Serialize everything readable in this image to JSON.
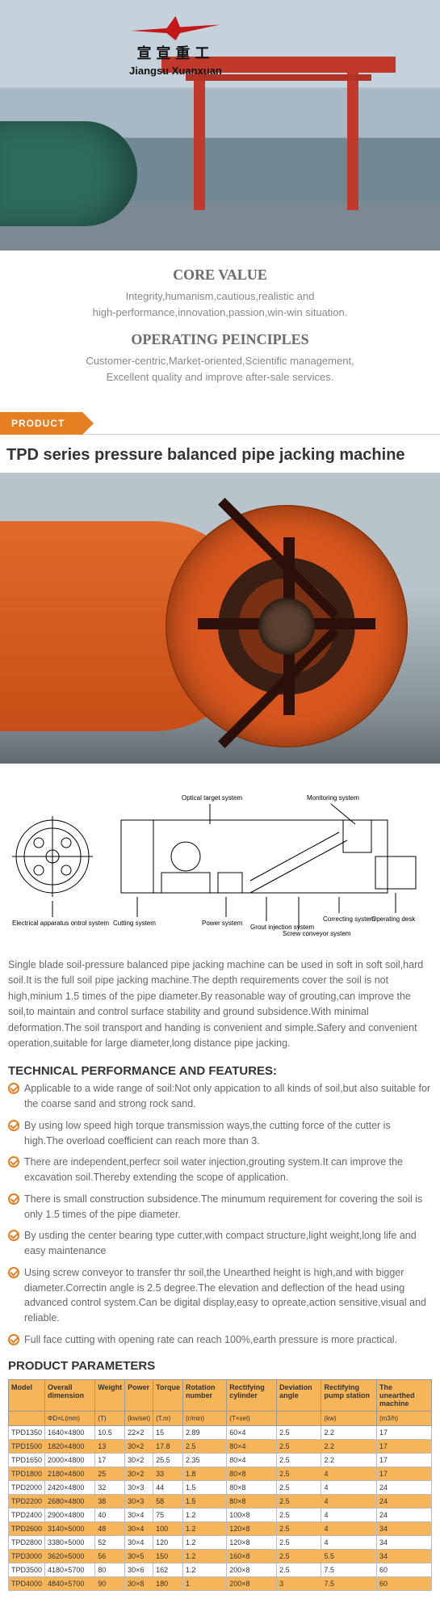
{
  "logo": {
    "cn": "宣宣重工",
    "en": "Jiangsu Xuanxuan"
  },
  "values": {
    "core_h": "CORE VALUE",
    "core_t1": "Integrity,humanism,cautious,realistic and",
    "core_t2": "high-performance,innovation,passion,win-win situation.",
    "op_h": "OPERATING PEINCIPLES",
    "op_t1": "Customer-centric,Market-oriented,Scientific management,",
    "op_t2": "Excellent quality and improve after-sale services."
  },
  "product_tab": "PRODUCT",
  "title": "TPD series pressure balanced pipe jacking machine",
  "diagram_labels": {
    "optical": "Optical target system",
    "monitor": "Monitoring system",
    "elec": "Electrical apparatus ontrol system",
    "cutting": "Cutting system",
    "power": "Power system",
    "grout": "Grout injection system",
    "screw": "Screw conveyor system",
    "correct": "Correcting system",
    "desk": "Operating desk"
  },
  "description": "Single blade soil-pressure balanced pipe jacking machine can be used in soft in soft soil,hard soil.It is the full soil pipe jacking machine.The depth requirements cover the soil is not high,minium 1.5 times of the pipe diameter.By reasonable way of grouting,can improve the soil,to maintain and control surface stability and ground subsidence.With minimal deformation.The soil transport and handing is convenient and simple.Safery and convenient operation,suitable for large diameter,long distance pipe jacking.",
  "tech_h": "TECHNICAL PERFORMANCE AND FEATURES:",
  "features": [
    "Applicable to a wide range of soil:Not only appication to all kinds of soil,but also suitable for the coarse sand and strong rock sand.",
    "By using low speed high torque transmission ways,the cutting force of the cutter is high.The overload coefficient can reach more than 3.",
    "There are independent,perfecr soil water injection,grouting system.It can improve the excavation soil.Thereby extending the scope of application.",
    "There is small construction subsidence.The minumum requirement for covering the soil is only 1.5 times of the pipe diameter.",
    "By usding the center bearing type cutter,with compact structure,light weight,long life and easy maintenance",
    "Using screw conveyor to transfer thr soil,the Unearthed height is high,and with bigger diameter.Correctin angle is 2.5 degree.The elevation and deflection of the head using advanced control system.Can be digital display,easy to opreate,action sensitive,visual and reliable.",
    "Full face cutting with opening rate can reach 100%,earth pressure is more practical."
  ],
  "params_h": "PRODUCT PARAMETERS",
  "params": {
    "headers": [
      "Model",
      "Overall dimension",
      "Weight",
      "Power",
      "Torque",
      "Rotation number",
      "Rectifying cylinder",
      "Deviation angle",
      "Rectifying pump station",
      "The unearthed machine"
    ],
    "sub": [
      "",
      "ΦD×L(mm)",
      "(T)",
      "(kw/set)",
      "(T.m)",
      "(r/min)",
      "(T×set)",
      "",
      "(kw)",
      "(m3/h)"
    ],
    "rows": [
      {
        "hl": false,
        "c": [
          "TPD1350",
          "1640×4800",
          "10.5",
          "22×2",
          "15",
          "2.89",
          "60×4",
          "2.5",
          "2.2",
          "17"
        ]
      },
      {
        "hl": true,
        "c": [
          "TPD1500",
          "1820×4800",
          "13",
          "30×2",
          "17.8",
          "2.5",
          "80×4",
          "2.5",
          "2.2",
          "17"
        ]
      },
      {
        "hl": false,
        "c": [
          "TPD1650",
          "2000×4800",
          "17",
          "30×2",
          "25.5",
          "2.35",
          "80×4",
          "2.5",
          "2.2",
          "17"
        ]
      },
      {
        "hl": true,
        "c": [
          "TPD1800",
          "2180×4800",
          "25",
          "30×2",
          "33",
          "1.8",
          "80×8",
          "2.5",
          "4",
          "17"
        ]
      },
      {
        "hl": false,
        "c": [
          "TPD2000",
          "2420×4800",
          "32",
          "30×3",
          "44",
          "1.5",
          "80×8",
          "2.5",
          "4",
          "24"
        ]
      },
      {
        "hl": true,
        "c": [
          "TPD2200",
          "2680×4800",
          "38",
          "30×3",
          "58",
          "1.5",
          "80×8",
          "2.5",
          "4",
          "24"
        ]
      },
      {
        "hl": false,
        "c": [
          "TPD2400",
          "2900×4800",
          "40",
          "30×4",
          "75",
          "1.2",
          "100×8",
          "2.5",
          "4",
          "24"
        ]
      },
      {
        "hl": true,
        "c": [
          "TPD2600",
          "3140×5000",
          "48",
          "30×4",
          "100",
          "1.2",
          "120×8",
          "2.5",
          "4",
          "34"
        ]
      },
      {
        "hl": false,
        "c": [
          "TPD2800",
          "3380×5000",
          "52",
          "30×4",
          "120",
          "1.2",
          "120×8",
          "2.5",
          "4",
          "34"
        ]
      },
      {
        "hl": true,
        "c": [
          "TPD3000",
          "3620×5000",
          "56",
          "30×5",
          "150",
          "1.2",
          "160×8",
          "2.5",
          "5.5",
          "34"
        ]
      },
      {
        "hl": false,
        "c": [
          "TPD3500",
          "4180×5700",
          "80",
          "30×6",
          "162",
          "1.2",
          "200×8",
          "2.5",
          "7.5",
          "60"
        ]
      },
      {
        "hl": true,
        "c": [
          "TPD4000",
          "4840×5700",
          "90",
          "30×8",
          "180",
          "1",
          "200×8",
          "3",
          "7.5",
          "60"
        ]
      }
    ],
    "header_bg": "#f7b55a",
    "hl_bg": "#f7b55a"
  }
}
